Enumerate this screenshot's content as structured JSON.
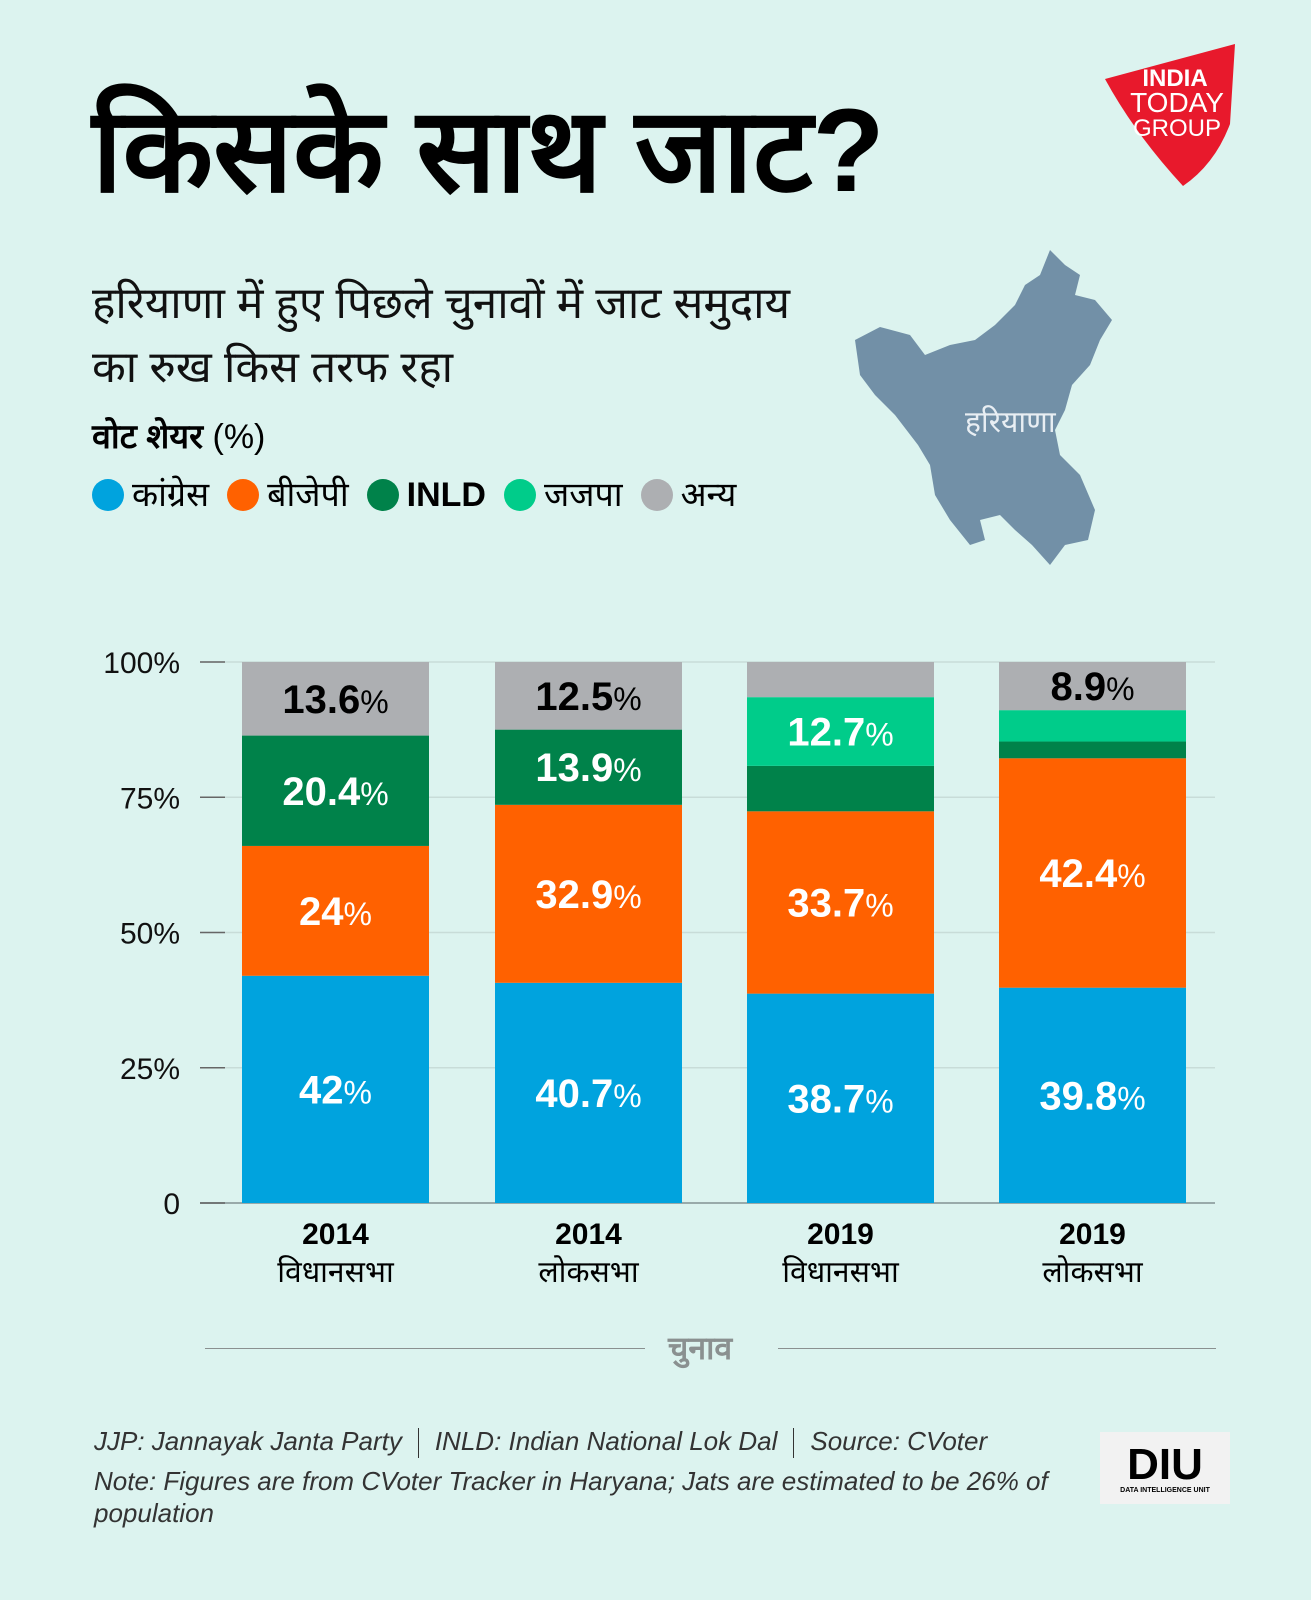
{
  "title": "किसके साथ जाट?",
  "subtitle": "हरियाणा में हुए पिछले चुनावों में जाट समुदाय का रुख किस तरफ रहा",
  "map_label": "हरियाणा",
  "logo": {
    "line1": "INDIA",
    "line2": "TODAY",
    "line3": "GROUP",
    "color": "#e8192c"
  },
  "footer": {
    "jjp": "JJP: Jannayak Janta Party",
    "inld": "INLD: Indian National Lok Dal",
    "source": "Source: CVoter",
    "note": "Note: Figures are from CVoter Tracker in Haryana; Jats are estimated to be 26% of population",
    "diu": "DIU",
    "diu_full": "DATA INTELLIGENCE UNIT"
  },
  "chart_data": {
    "type": "bar",
    "stacked": true,
    "ylabel": "वोट शेयर",
    "ylabel_unit": "(%)",
    "xlabel": "चुनाव",
    "ylim": [
      0,
      100
    ],
    "yticks": [
      "0",
      "25%",
      "50%",
      "75%",
      "100%"
    ],
    "grid": true,
    "legend_placement": "top-left",
    "categories": [
      {
        "year": "2014",
        "type": "विधानसभा"
      },
      {
        "year": "2014",
        "type": "लोकसभा"
      },
      {
        "year": "2019",
        "type": "विधानसभा"
      },
      {
        "year": "2019",
        "type": "लोकसभा"
      }
    ],
    "series": [
      {
        "name": "कांग्रेस",
        "color": "#00a3de",
        "values": [
          42,
          40.7,
          38.7,
          39.8
        ],
        "labels": [
          "42",
          "40.7",
          "38.7",
          "39.8"
        ]
      },
      {
        "name": "बीजेपी",
        "color": "#ff6100",
        "values": [
          24,
          32.9,
          33.7,
          42.4
        ],
        "labels": [
          "24",
          "32.9",
          "33.7",
          "42.4"
        ]
      },
      {
        "name": "INLD",
        "color": "#00824a",
        "values": [
          20.4,
          13.9,
          8.4,
          3.1
        ],
        "labels": [
          "20.4",
          "13.9",
          "",
          ""
        ]
      },
      {
        "name": "जजपा",
        "color": "#00cc8a",
        "values": [
          0,
          0,
          12.7,
          5.8
        ],
        "labels": [
          "",
          "",
          "12.7",
          ""
        ]
      },
      {
        "name": "अन्य",
        "color": "#adafb2",
        "values": [
          13.6,
          12.5,
          6.5,
          8.9
        ],
        "labels": [
          "13.6",
          "12.5",
          "",
          "8.9"
        ]
      }
    ]
  }
}
